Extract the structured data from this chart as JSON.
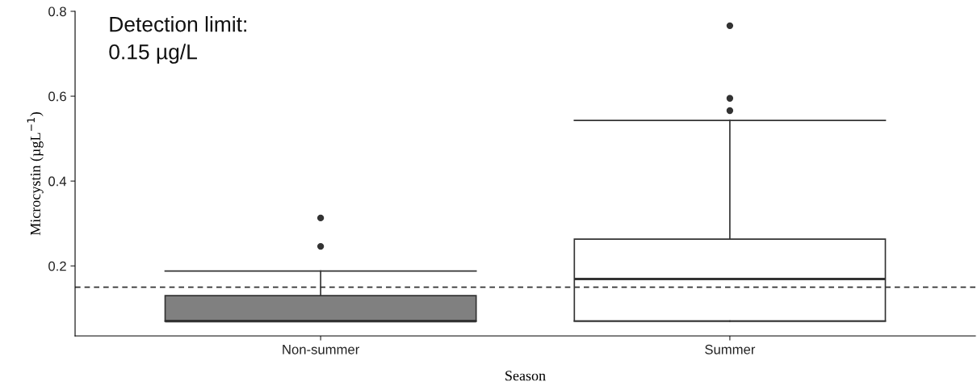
{
  "chart_data": {
    "type": "box",
    "xlabel": "Season",
    "ylabel": "Microcystin (µgL$^{−1}$)",
    "categories": [
      "Non-summer",
      "Summer"
    ],
    "colors": [
      "#808080",
      "#ffffff"
    ],
    "boxes": [
      {
        "low": 0.07,
        "q1": 0.07,
        "median": 0.07,
        "q3": 0.13,
        "high": 0.188,
        "outliers": [
          0.246,
          0.313
        ]
      },
      {
        "low": 0.07,
        "q1": 0.07,
        "median": 0.169,
        "q3": 0.263,
        "high": 0.543,
        "outliers": [
          0.566,
          0.595,
          0.766
        ]
      }
    ],
    "ylim": [
      0.035,
      0.8
    ],
    "yticks": [
      0.2,
      0.4,
      0.6,
      0.8
    ],
    "ref_lines": [
      {
        "axis": "y",
        "value": 0.15,
        "line_style": "dashed",
        "color": "#333333"
      }
    ],
    "annotations": [
      "Detection limit:\n0.15 µg/L"
    ],
    "grid": false
  }
}
